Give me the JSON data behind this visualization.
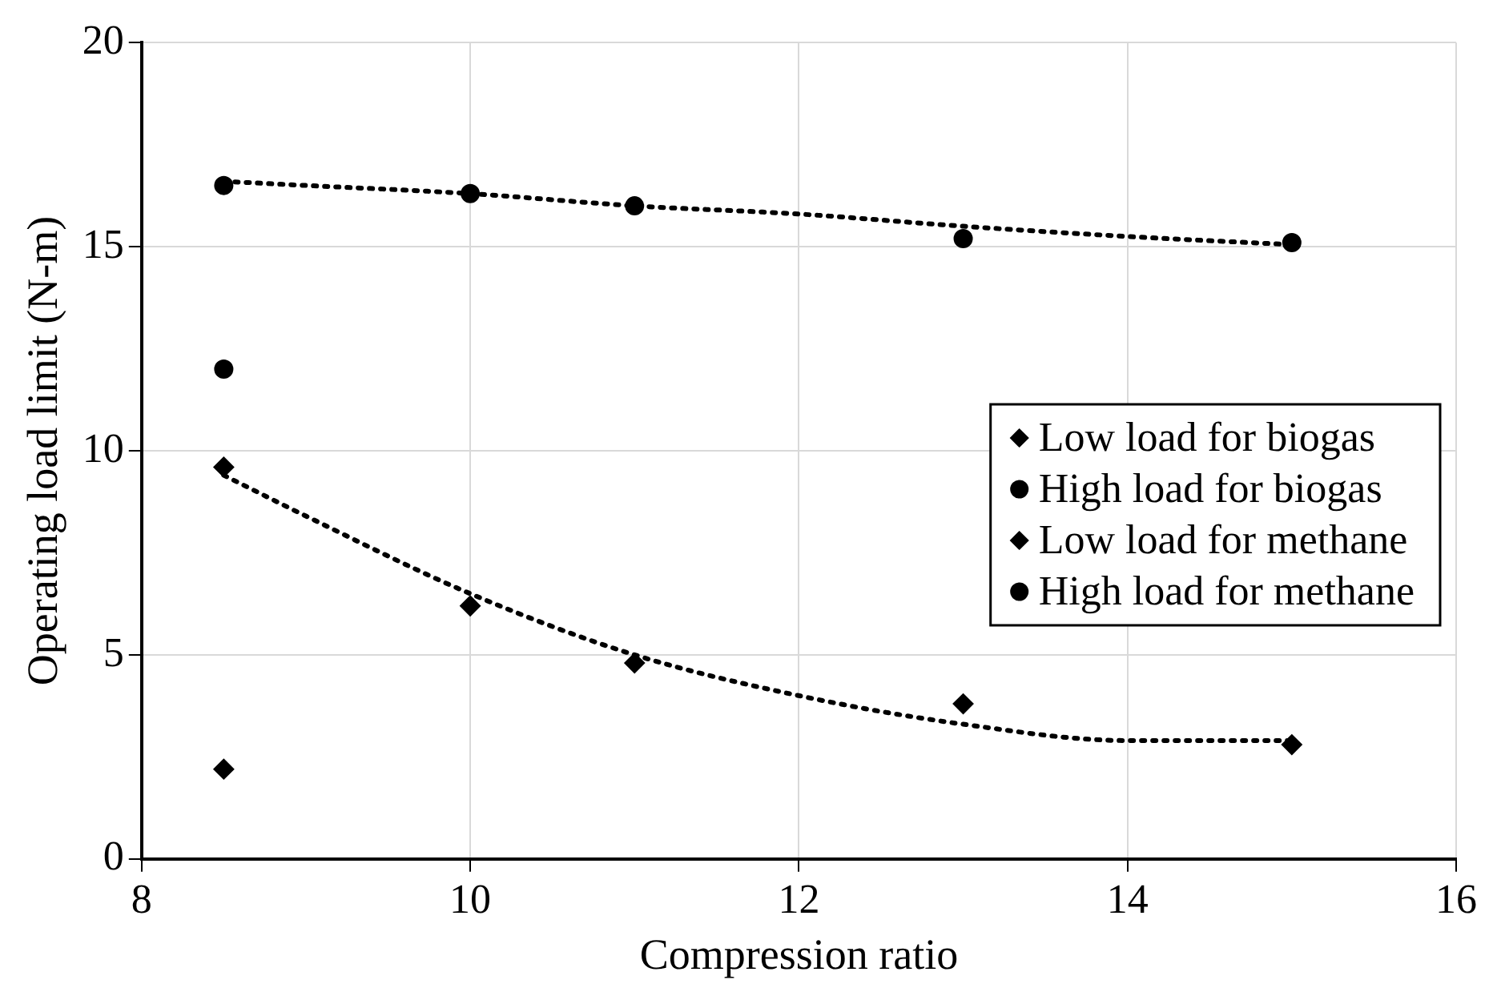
{
  "chart_data": {
    "type": "scatter",
    "xlabel": "Compression ratio",
    "ylabel": "Operating load limit (N-m)",
    "xlim": [
      8,
      16
    ],
    "xticks": [
      8,
      10,
      12,
      14,
      16
    ],
    "ylim": [
      0,
      20
    ],
    "yticks": [
      0,
      5,
      10,
      15,
      20
    ],
    "grid": true,
    "legend": "right",
    "series": [
      {
        "name": "Low load for biogas",
        "color": "#000000",
        "marker": "diamond",
        "x": [
          8.5,
          10,
          11,
          13,
          15
        ],
        "values": [
          9.6,
          6.2,
          4.8,
          3.8,
          2.8
        ]
      },
      {
        "name": "High load for biogas",
        "color": "#000000",
        "marker": "circle",
        "x": [
          8.5,
          10,
          11,
          13,
          15
        ],
        "values": [
          16.5,
          16.3,
          16.0,
          15.2,
          15.1
        ]
      },
      {
        "name": "Low load for methane",
        "color": "#000000",
        "marker": "diamond",
        "x": [
          8.5
        ],
        "values": [
          2.2
        ]
      },
      {
        "name": "High load for methane",
        "color": "#000000",
        "marker": "circle",
        "x": [
          8.5
        ],
        "values": [
          12.0
        ]
      },
      {
        "type": "line",
        "color": "#000000",
        "line_style": "dotted",
        "marker": "none",
        "x": [
          8.5,
          9,
          10,
          11,
          12,
          13,
          14,
          15
        ],
        "values": [
          16.6,
          16.5,
          16.3,
          16.0,
          15.8,
          15.5,
          15.25,
          15.05
        ]
      },
      {
        "type": "line",
        "color": "#000000",
        "line_style": "dotted",
        "marker": "none",
        "x": [
          8.5,
          9,
          10,
          11,
          12,
          13,
          14,
          15
        ],
        "values": [
          9.4,
          8.4,
          6.5,
          5.0,
          4.0,
          3.3,
          2.9,
          2.9
        ]
      }
    ]
  }
}
